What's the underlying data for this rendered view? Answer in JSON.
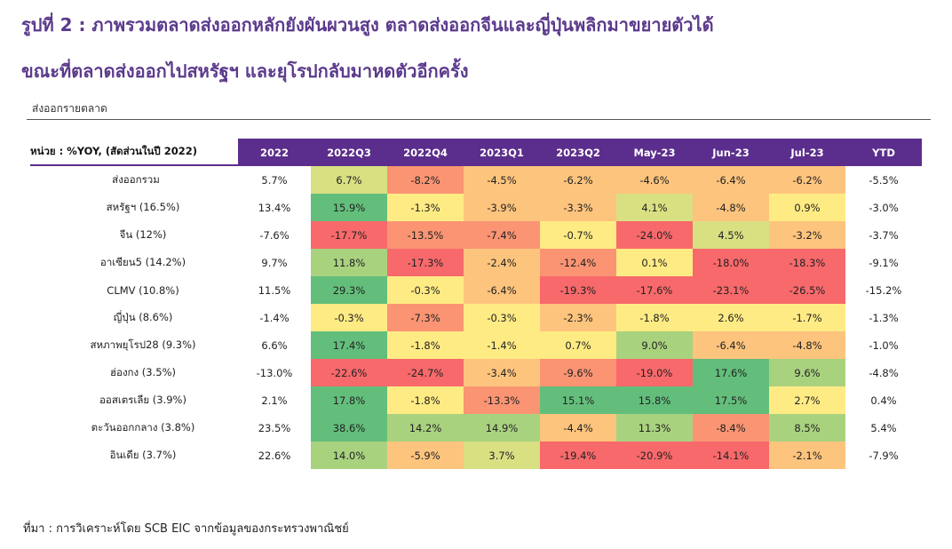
{
  "figure": {
    "title_line1": "รูปที่ 2 : ภาพรวมตลาดส่งออกหลักยังผันผวนสูง ตลาดส่งออกจีนและญี่ปุ่นพลิกมาขยายตัวได้",
    "title_line2": "ขณะที่ตลาดส่งออกไปสหรัฐฯ และยุโรปกลับมาหดตัวอีกครั้ง",
    "subtitle": "ส่งออกรายตลาด",
    "source": "ที่มา : การวิเคราะห์โดย SCB EIC จากข้อมูลของกระทรวงพาณิชย์"
  },
  "table": {
    "unit_label": "หน่วย : %YOY, (สัดส่วนในปี 2022)",
    "columns": [
      "2022",
      "2022Q3",
      "2022Q4",
      "2023Q1",
      "2023Q2",
      "May-23",
      "Jun-23",
      "Jul-23",
      "YTD"
    ],
    "rows": [
      {
        "label": "ส่งออกรวม",
        "cells": [
          "5.7%",
          "6.7%",
          "-8.2%",
          "-4.5%",
          "-6.2%",
          "-4.6%",
          "-6.4%",
          "-6.2%",
          "-5.5%"
        ],
        "nums": [
          5.7,
          6.7,
          -8.2,
          -4.5,
          -6.2,
          -4.6,
          -6.4,
          -6.2,
          -5.5
        ]
      },
      {
        "label": "สหรัฐฯ (16.5%)",
        "cells": [
          "13.4%",
          "15.9%",
          "-1.3%",
          "-3.9%",
          "-3.3%",
          "4.1%",
          "-4.8%",
          "0.9%",
          "-3.0%"
        ],
        "nums": [
          13.4,
          15.9,
          -1.3,
          -3.9,
          -3.3,
          4.1,
          -4.8,
          0.9,
          -3.0
        ]
      },
      {
        "label": "จีน (12%)",
        "cells": [
          "-7.6%",
          "-17.7%",
          "-13.5%",
          "-7.4%",
          "-0.7%",
          "-24.0%",
          "4.5%",
          "-3.2%",
          "-3.7%"
        ],
        "nums": [
          -7.6,
          -17.7,
          -13.5,
          -7.4,
          -0.7,
          -24.0,
          4.5,
          -3.2,
          -3.7
        ]
      },
      {
        "label": "อาเซียน5 (14.2%)",
        "cells": [
          "9.7%",
          "11.8%",
          "-17.3%",
          "-2.4%",
          "-12.4%",
          "0.1%",
          "-18.0%",
          "-18.3%",
          "-9.1%"
        ],
        "nums": [
          9.7,
          11.8,
          -17.3,
          -2.4,
          -12.4,
          0.1,
          -18.0,
          -18.3,
          -9.1
        ]
      },
      {
        "label": "CLMV (10.8%)",
        "cells": [
          "11.5%",
          "29.3%",
          "-0.3%",
          "-6.4%",
          "-19.3%",
          "-17.6%",
          "-23.1%",
          "-26.5%",
          "-15.2%"
        ],
        "nums": [
          11.5,
          29.3,
          -0.3,
          -6.4,
          -19.3,
          -17.6,
          -23.1,
          -26.5,
          -15.2
        ]
      },
      {
        "label": "ญี่ปุ่น (8.6%)",
        "cells": [
          "-1.4%",
          "-0.3%",
          "-7.3%",
          "-0.3%",
          "-2.3%",
          "-1.8%",
          "2.6%",
          "-1.7%",
          "-1.3%"
        ],
        "nums": [
          -1.4,
          -0.3,
          -7.3,
          -0.3,
          -2.3,
          -1.8,
          2.6,
          -1.7,
          -1.3
        ]
      },
      {
        "label": "สหภาพยุโรป28 (9.3%)",
        "cells": [
          "6.6%",
          "17.4%",
          "-1.8%",
          "-1.4%",
          "0.7%",
          "9.0%",
          "-6.4%",
          "-4.8%",
          "-1.0%"
        ],
        "nums": [
          6.6,
          17.4,
          -1.8,
          -1.4,
          0.7,
          9.0,
          -6.4,
          -4.8,
          -1.0
        ]
      },
      {
        "label": "ฮ่องกง (3.5%)",
        "cells": [
          "-13.0%",
          "-22.6%",
          "-24.7%",
          "-3.4%",
          "-9.6%",
          "-19.0%",
          "17.6%",
          "9.6%",
          "-4.8%"
        ],
        "nums": [
          -13.0,
          -22.6,
          -24.7,
          -3.4,
          -9.6,
          -19.0,
          17.6,
          9.6,
          -4.8
        ]
      },
      {
        "label": "ออสเตรเลีย (3.9%)",
        "cells": [
          "2.1%",
          "17.8%",
          "-1.8%",
          "-13.3%",
          "15.1%",
          "15.8%",
          "17.5%",
          "2.7%",
          "0.4%"
        ],
        "nums": [
          2.1,
          17.8,
          -1.8,
          -13.3,
          15.1,
          15.8,
          17.5,
          2.7,
          0.4
        ]
      },
      {
        "label": "ตะวันออกกลาง (3.8%)",
        "cells": [
          "23.5%",
          "38.6%",
          "14.2%",
          "14.9%",
          "-4.4%",
          "11.3%",
          "-8.4%",
          "8.5%",
          "5.4%"
        ],
        "nums": [
          23.5,
          38.6,
          14.2,
          14.9,
          -4.4,
          11.3,
          -8.4,
          8.5,
          5.4
        ]
      },
      {
        "label": "อินเดีย (3.7%)",
        "cells": [
          "22.6%",
          "14.0%",
          "-5.9%",
          "3.7%",
          "-19.4%",
          "-20.9%",
          "-14.1%",
          "-2.1%",
          "-7.9%"
        ],
        "nums": [
          22.6,
          14.0,
          -5.9,
          3.7,
          -19.4,
          -20.9,
          -14.1,
          -2.1,
          -7.9
        ]
      }
    ],
    "heat_colors": {
      "strong_positive": "#63be7b",
      "positive": "#a9d27f",
      "mild_positive": "#d8e082",
      "neutral": "#ffeb84",
      "mild_negative": "#fdc47d",
      "negative": "#fa9473",
      "strong_negative": "#f8696b"
    }
  }
}
